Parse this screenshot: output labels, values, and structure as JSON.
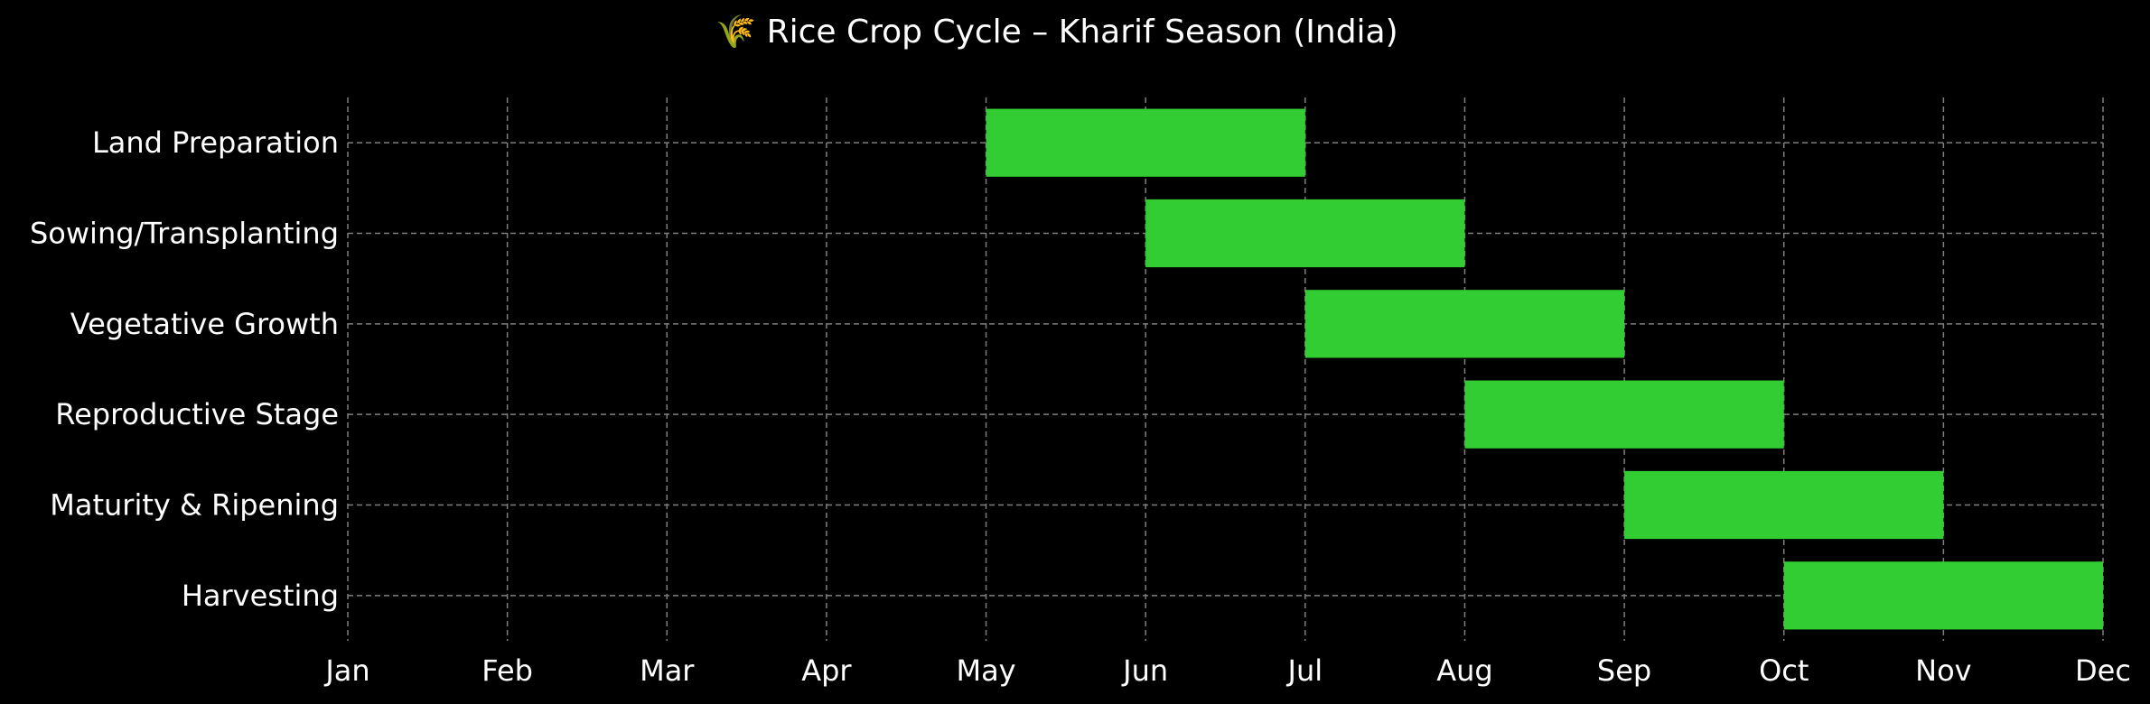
{
  "chart_data": {
    "type": "bar",
    "orientation": "horizontal",
    "title": "🌾 Rice Crop Cycle – Kharif Season (India)",
    "xlabel": "",
    "ylabel": "",
    "x_ticks": [
      "Jan",
      "Feb",
      "Mar",
      "Apr",
      "May",
      "Jun",
      "Jul",
      "Aug",
      "Sep",
      "Oct",
      "Nov",
      "Dec"
    ],
    "xlim": [
      "Jan",
      "Dec"
    ],
    "grid": true,
    "categories": [
      "Land Preparation",
      "Sowing/Transplanting",
      "Vegetative Growth",
      "Reproductive Stage",
      "Maturity & Ripening",
      "Harvesting"
    ],
    "series": [
      {
        "values": [
          {
            "start": "May",
            "end": "Jul"
          },
          {
            "start": "Jun",
            "end": "Aug"
          },
          {
            "start": "Jul",
            "end": "Sep"
          },
          {
            "start": "Aug",
            "end": "Oct"
          },
          {
            "start": "Sep",
            "end": "Nov"
          },
          {
            "start": "Oct",
            "end": "Dec"
          }
        ],
        "color": "#32cd32"
      }
    ],
    "colors": {
      "background": "#000000",
      "bar": "#32cd32",
      "text": "#ffffff",
      "grid": "#7f7f7f"
    }
  }
}
